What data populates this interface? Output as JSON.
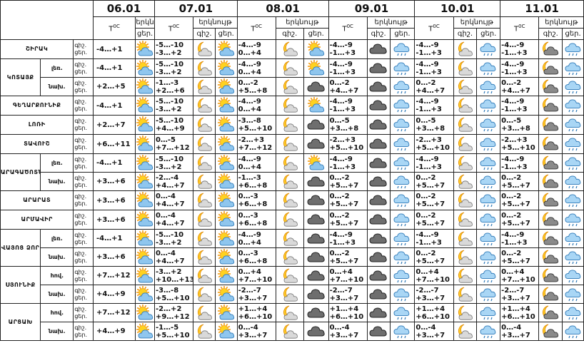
{
  "header": {
    "dates": [
      "06.01",
      "07.01",
      "08.01",
      "09.01",
      "10.01",
      "11.01"
    ],
    "temp_label": "T",
    "temp_unit": "0C",
    "cloudiness_label": "երկնույթ",
    "night_label": "գիշ.",
    "day_label": "ցեր."
  },
  "groups": [
    {
      "name": "ՇԻՐԱԿ",
      "rows": [
        {
          "zone": "",
          "first": {
            "icon": "sun-cloud-icon",
            "temp": "-4…+1"
          },
          "days": [
            {
              "night": "-5…-10",
              "day": "-3…+2",
              "n": "moon-cloud-icon",
              "d": "sun-cloud-icon"
            },
            {
              "night": "-4…-9",
              "day": "0…+4",
              "n": "moon-cloud-icon",
              "d": "sun-cloud-icon"
            },
            {
              "night": "-4…-9",
              "day": "-1…+3",
              "n": "dark-cloud-icon",
              "d": "rain-cloud-icon"
            },
            {
              "night": "-4…-9",
              "day": "-1…+3",
              "n": "moon-cloud-icon",
              "d": "rain-cloud-icon"
            },
            {
              "night": "-4…-9",
              "day": "-1…+3",
              "n": "moon-dark-cloud-icon",
              "d": "rain-cloud-icon"
            }
          ]
        }
      ]
    },
    {
      "name": "ԿՈՏԱՅՔ",
      "rows": [
        {
          "zone": "լեռ.",
          "first": {
            "icon": "sun-cloud-icon",
            "temp": "-4…+1"
          },
          "days": [
            {
              "night": "-5…-10",
              "day": "-3…+2",
              "n": "moon-cloud-icon",
              "d": "sun-cloud-icon"
            },
            {
              "night": "-4…-9",
              "day": "0…+4",
              "n": "moon-cloud-icon",
              "d": "sun-cloud-icon"
            },
            {
              "night": "-4…-9",
              "day": "-1…+3",
              "n": "dark-cloud-icon",
              "d": "rain-cloud-icon"
            },
            {
              "night": "-4…-9",
              "day": "-1…+3",
              "n": "moon-cloud-icon",
              "d": "rain-cloud-icon"
            },
            {
              "night": "-4…-9",
              "day": "-1…+3",
              "n": "moon-dark-cloud-icon",
              "d": "rain-cloud-icon"
            }
          ]
        },
        {
          "zone": "նախ.",
          "first": {
            "icon": "sun-cloud-icon",
            "temp": "+2…+5"
          },
          "days": [
            {
              "night": "-1…-3",
              "day": "+2…+6",
              "n": "moon-cloud-icon",
              "d": "sun-cloud-icon"
            },
            {
              "night": "0…-2",
              "day": "+5…+8",
              "n": "moon-cloud-icon",
              "d": "dark-cloud-icon"
            },
            {
              "night": "0…-2",
              "day": "+4…+7",
              "n": "dark-cloud-icon",
              "d": "rain-cloud-icon"
            },
            {
              "night": "0…-2",
              "day": "+4…+7",
              "n": "moon-cloud-icon",
              "d": "rain-cloud-icon"
            },
            {
              "night": "0…-2",
              "day": "+4…+7",
              "n": "moon-dark-cloud-icon",
              "d": "rain-cloud-icon"
            }
          ]
        }
      ]
    },
    {
      "name": "ԳԵՂԱՐՔՈՒՆԻՔ",
      "rows": [
        {
          "zone": "",
          "first": {
            "icon": "sun-cloud-icon",
            "temp": "-4…+1"
          },
          "days": [
            {
              "night": "-5…-10",
              "day": "-3…+2",
              "n": "moon-cloud-icon",
              "d": "sun-cloud-icon"
            },
            {
              "night": "-4…-9",
              "day": "0…+4",
              "n": "moon-cloud-icon",
              "d": "sun-cloud-icon"
            },
            {
              "night": "-4…-9",
              "day": "-1…+3",
              "n": "dark-cloud-icon",
              "d": "rain-cloud-icon"
            },
            {
              "night": "-4…-9",
              "day": "-1…+3",
              "n": "moon-cloud-icon",
              "d": "rain-cloud-icon"
            },
            {
              "night": "-4…-9",
              "day": "-1…+3",
              "n": "moon-dark-cloud-icon",
              "d": "rain-cloud-icon"
            }
          ]
        }
      ]
    },
    {
      "name": "ԼՈՌԻ",
      "rows": [
        {
          "zone": "",
          "first": {
            "icon": "sun-cloud-icon",
            "temp": "+2…+7"
          },
          "days": [
            {
              "night": "-5…-10",
              "day": "+4…+9",
              "n": "moon-cloud-icon",
              "d": "sun-cloud-icon"
            },
            {
              "night": "-3…-8",
              "day": "+5…+10",
              "n": "moon-cloud-icon",
              "d": "dark-cloud-icon"
            },
            {
              "night": "0…-5",
              "day": "+3…+8",
              "n": "dark-cloud-icon",
              "d": "rain-cloud-icon"
            },
            {
              "night": "0…-5",
              "day": "+3…+8",
              "n": "moon-cloud-icon",
              "d": "rain-cloud-icon"
            },
            {
              "night": "0…-5",
              "day": "+3…+8",
              "n": "moon-dark-cloud-icon",
              "d": "rain-cloud-icon"
            }
          ]
        }
      ]
    },
    {
      "name": "ՏԱՎՈՒՇ",
      "rows": [
        {
          "zone": "",
          "first": {
            "icon": "sun-cloud-icon",
            "temp": "+6…+11"
          },
          "days": [
            {
              "night": "0…-5",
              "day": "+7…+12",
              "n": "moon-cloud-icon",
              "d": "sun-cloud-icon"
            },
            {
              "night": "-2…+3",
              "day": "+7…+12",
              "n": "moon-cloud-icon",
              "d": "dark-cloud-icon"
            },
            {
              "night": "-2…+3",
              "day": "+5…+10",
              "n": "dark-cloud-icon",
              "d": "rain-cloud-icon"
            },
            {
              "night": "-2…+3",
              "day": "+5…+10",
              "n": "moon-cloud-icon",
              "d": "rain-cloud-icon"
            },
            {
              "night": "-2…+3",
              "day": "+5…+10",
              "n": "moon-dark-cloud-icon",
              "d": "rain-cloud-icon"
            }
          ]
        }
      ]
    },
    {
      "name": "ԱՐԱԳԱԾՈՏՆ",
      "rows": [
        {
          "zone": "լեռ.",
          "first": {
            "icon": "sun-cloud-icon",
            "temp": "-4…+1"
          },
          "days": [
            {
              "night": "-5…-10",
              "day": "-3…+2",
              "n": "moon-cloud-icon",
              "d": "sun-cloud-icon"
            },
            {
              "night": "-4…-9",
              "day": "0…+4",
              "n": "moon-cloud-icon",
              "d": "sun-cloud-icon"
            },
            {
              "night": "-4…-9",
              "day": "-1…+3",
              "n": "dark-cloud-icon",
              "d": "rain-cloud-icon"
            },
            {
              "night": "-4…-9",
              "day": "-1…+3",
              "n": "moon-cloud-icon",
              "d": "rain-cloud-icon"
            },
            {
              "night": "-4…-9",
              "day": "-1…+3",
              "n": "moon-dark-cloud-icon",
              "d": "rain-cloud-icon"
            }
          ]
        },
        {
          "zone": "նախ.",
          "first": {
            "icon": "sun-cloud-icon",
            "temp": "+3…+6"
          },
          "days": [
            {
              "night": "-2…-4",
              "day": "+4…+7",
              "n": "moon-cloud-icon",
              "d": "sun-cloud-icon"
            },
            {
              "night": "-1…-3",
              "day": "+6…+8",
              "n": "moon-cloud-icon",
              "d": "dark-cloud-icon"
            },
            {
              "night": "0…-2",
              "day": "+5…+7",
              "n": "dark-cloud-icon",
              "d": "rain-cloud-icon"
            },
            {
              "night": "0…-2",
              "day": "+5…+7",
              "n": "moon-cloud-icon",
              "d": "rain-cloud-icon"
            },
            {
              "night": "0…-2",
              "day": "+5…+7",
              "n": "moon-dark-cloud-icon",
              "d": "rain-cloud-icon"
            }
          ]
        }
      ]
    },
    {
      "name": "ԱՐԱՐԱՏ",
      "rows": [
        {
          "zone": "",
          "first": {
            "icon": "sun-cloud-icon",
            "temp": "+3…+6"
          },
          "days": [
            {
              "night": "0…-4",
              "day": "+4…+7",
              "n": "moon-cloud-icon",
              "d": "sun-cloud-icon"
            },
            {
              "night": "0…-3",
              "day": "+6…+8",
              "n": "moon-cloud-icon",
              "d": "dark-cloud-icon"
            },
            {
              "night": "0…-2",
              "day": "+5…+7",
              "n": "dark-cloud-icon",
              "d": "rain-cloud-icon"
            },
            {
              "night": "0…-2",
              "day": "+5…+7",
              "n": "moon-cloud-icon",
              "d": "rain-cloud-icon"
            },
            {
              "night": "0…-2",
              "day": "+5…+7",
              "n": "moon-dark-cloud-icon",
              "d": "rain-cloud-icon"
            }
          ]
        }
      ]
    },
    {
      "name": "ԱՐՄԱՎԻՐ",
      "rows": [
        {
          "zone": "",
          "first": {
            "icon": "sun-cloud-icon",
            "temp": "+3…+6"
          },
          "days": [
            {
              "night": "0…-4",
              "day": "+4…+7",
              "n": "moon-cloud-icon",
              "d": "sun-cloud-icon"
            },
            {
              "night": "0…-3",
              "day": "+6…+8",
              "n": "moon-cloud-icon",
              "d": "dark-cloud-icon"
            },
            {
              "night": "0…-2",
              "day": "+5…+7",
              "n": "dark-cloud-icon",
              "d": "rain-cloud-icon"
            },
            {
              "night": "0…-2",
              "day": "+5…+7",
              "n": "moon-cloud-icon",
              "d": "rain-cloud-icon"
            },
            {
              "night": "0…-2",
              "day": "+5…+7",
              "n": "moon-dark-cloud-icon",
              "d": "rain-cloud-icon"
            }
          ]
        }
      ]
    },
    {
      "name": "ՎԱՅՈՑ ՁՈՐ",
      "rows": [
        {
          "zone": "լեռ.",
          "first": {
            "icon": "sun-cloud-icon",
            "temp": "-4…+1"
          },
          "days": [
            {
              "night": "-5…-10",
              "day": "-3…+2",
              "n": "moon-cloud-icon",
              "d": "sun-cloud-icon"
            },
            {
              "night": "-4…-9",
              "day": "0…+4",
              "n": "moon-cloud-icon",
              "d": "dark-cloud-icon"
            },
            {
              "night": "-4…-9",
              "day": "-1…+3",
              "n": "dark-cloud-icon",
              "d": "rain-cloud-icon"
            },
            {
              "night": "-4…-9",
              "day": "-1…+3",
              "n": "moon-cloud-icon",
              "d": "rain-cloud-icon"
            },
            {
              "night": "-4…-9",
              "day": "-1…+3",
              "n": "moon-dark-cloud-icon",
              "d": "rain-cloud-icon"
            }
          ]
        },
        {
          "zone": "նախ.",
          "first": {
            "icon": "sun-cloud-icon",
            "temp": "+3…+6"
          },
          "days": [
            {
              "night": "0…-4",
              "day": "+4…+7",
              "n": "moon-cloud-icon",
              "d": "sun-cloud-icon"
            },
            {
              "night": "0…-3",
              "day": "+6…+8",
              "n": "moon-cloud-icon",
              "d": "dark-cloud-icon"
            },
            {
              "night": "0…-2",
              "day": "+5…+7",
              "n": "dark-cloud-icon",
              "d": "rain-cloud-icon"
            },
            {
              "night": "0…-2",
              "day": "+5…+7",
              "n": "moon-cloud-icon",
              "d": "rain-cloud-icon"
            },
            {
              "night": "0…-2",
              "day": "+5…+7",
              "n": "moon-dark-cloud-icon",
              "d": "rain-cloud-icon"
            }
          ]
        }
      ]
    },
    {
      "name": "ՍՅՈՒՆԻՔ",
      "rows": [
        {
          "zone": "հով.",
          "first": {
            "icon": "sun-cloud-icon",
            "temp": "+7…+12"
          },
          "days": [
            {
              "night": "-3…+2",
              "day": "+10…+13",
              "n": "moon-cloud-icon",
              "d": "sun-cloud-icon"
            },
            {
              "night": "0…+4",
              "day": "+7…+10",
              "n": "moon-cloud-icon",
              "d": "dark-cloud-icon"
            },
            {
              "night": "0…+4",
              "day": "+7…+10",
              "n": "dark-cloud-icon",
              "d": "rain-cloud-icon"
            },
            {
              "night": "0…+4",
              "day": "+7…+10",
              "n": "moon-cloud-icon",
              "d": "rain-cloud-icon"
            },
            {
              "night": "0…+4",
              "day": "+7…+10",
              "n": "moon-dark-cloud-icon",
              "d": "rain-cloud-icon"
            }
          ]
        },
        {
          "zone": "նախ.",
          "first": {
            "icon": "sun-cloud-icon",
            "temp": "+4…+9"
          },
          "days": [
            {
              "night": "-3…-8",
              "day": "+5…+10",
              "n": "moon-cloud-icon",
              "d": "sun-cloud-icon"
            },
            {
              "night": "-2…-7",
              "day": "+3…+7",
              "n": "moon-cloud-icon",
              "d": "dark-cloud-icon"
            },
            {
              "night": "-2…-7",
              "day": "+3…+7",
              "n": "dark-cloud-icon",
              "d": "rain-cloud-icon"
            },
            {
              "night": "-2…-7",
              "day": "+3…+7",
              "n": "moon-cloud-icon",
              "d": "rain-cloud-icon"
            },
            {
              "night": "-2…-7",
              "day": "+3…+7",
              "n": "moon-dark-cloud-icon",
              "d": "rain-cloud-icon"
            }
          ]
        }
      ]
    },
    {
      "name": "ԱՐՑԱԽ",
      "rows": [
        {
          "zone": "հով.",
          "first": {
            "icon": "sun-cloud-icon",
            "temp": "+7…+12"
          },
          "days": [
            {
              "night": "-2…+2",
              "day": "+9…+12",
              "n": "moon-cloud-icon",
              "d": "sun-cloud-icon"
            },
            {
              "night": "+1…+4",
              "day": "+6…+10",
              "n": "moon-cloud-icon",
              "d": "dark-cloud-icon"
            },
            {
              "night": "+1…+4",
              "day": "+6…+10",
              "n": "dark-cloud-icon",
              "d": "rain-cloud-icon"
            },
            {
              "night": "+1…+4",
              "day": "+6…+10",
              "n": "moon-cloud-icon",
              "d": "rain-cloud-icon"
            },
            {
              "night": "+1…+4",
              "day": "+6…+10",
              "n": "moon-dark-cloud-icon",
              "d": "rain-cloud-icon"
            }
          ]
        },
        {
          "zone": "նախ.",
          "first": {
            "icon": "sun-cloud-icon",
            "temp": "+4…+9"
          },
          "days": [
            {
              "night": "-1…-5",
              "day": "+5…+10",
              "n": "moon-cloud-icon",
              "d": "sun-cloud-icon"
            },
            {
              "night": "0…-4",
              "day": "+3…+7",
              "n": "moon-cloud-icon",
              "d": "dark-cloud-icon"
            },
            {
              "night": "0…-4",
              "day": "+3…+7",
              "n": "dark-cloud-icon",
              "d": "rain-cloud-icon"
            },
            {
              "night": "0…-4",
              "day": "+3…+7",
              "n": "moon-cloud-icon",
              "d": "rain-cloud-icon"
            },
            {
              "night": "0…-4",
              "day": "+3…+7",
              "n": "moon-dark-cloud-icon",
              "d": "rain-cloud-icon"
            }
          ]
        }
      ]
    }
  ]
}
